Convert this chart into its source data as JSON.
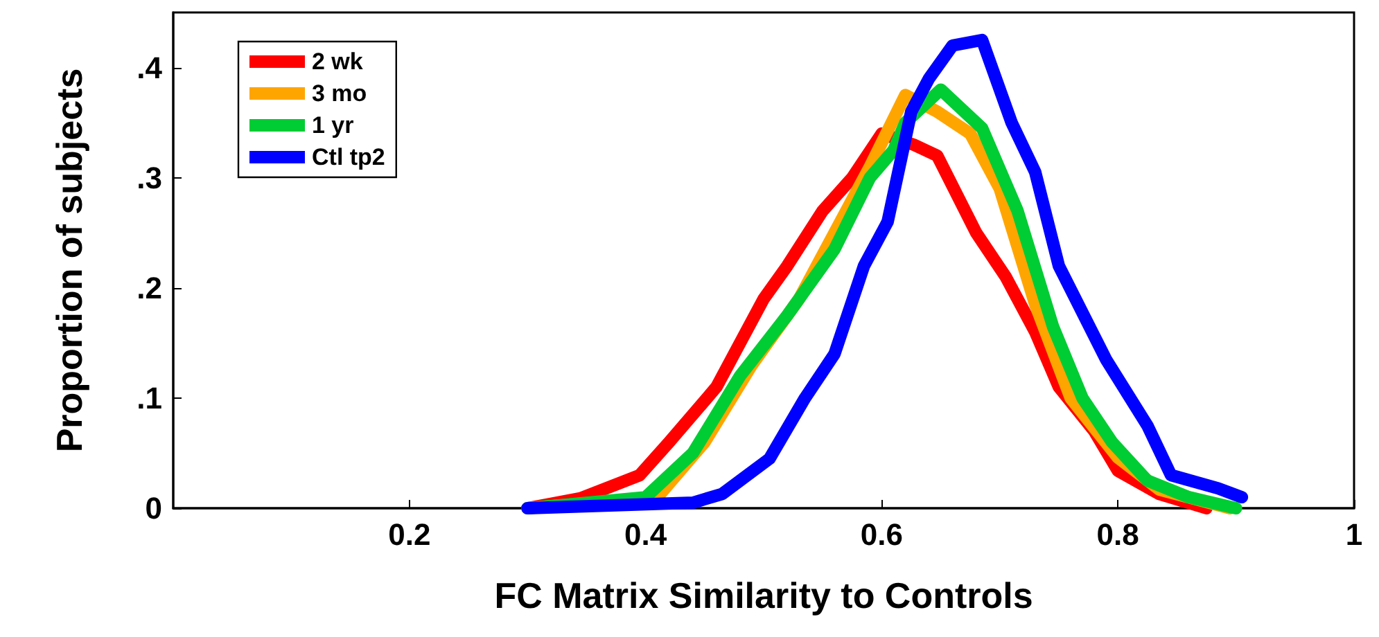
{
  "chart_data": {
    "type": "line",
    "xlabel": "FC Matrix Similarity to Controls",
    "ylabel": "Proportion of subjects",
    "xlim": [
      0,
      1
    ],
    "xticks": [
      0.2,
      0.4,
      0.6,
      0.8,
      1
    ],
    "ylim": [
      0,
      0.45
    ],
    "yticks": [
      0,
      {
        "value": 0.1,
        "label": ".1"
      },
      {
        "value": 0.2,
        "label": ".2"
      },
      {
        "value": 0.3,
        "label": ".3"
      },
      {
        "value": 0.4,
        "label": ".4"
      }
    ],
    "grid": false,
    "legend": "top left",
    "marker": "none",
    "line_style": "solid",
    "series": [
      {
        "name": "2 wk",
        "color": "#ff0000",
        "x": [
          0.3,
          0.345,
          0.395,
          0.42,
          0.46,
          0.5,
          0.52,
          0.55,
          0.575,
          0.6,
          0.627,
          0.647,
          0.68,
          0.705,
          0.73,
          0.75,
          0.78,
          0.8,
          0.835,
          0.875
        ],
        "values": [
          0,
          0.009,
          0.03,
          0.06,
          0.11,
          0.19,
          0.22,
          0.27,
          0.3,
          0.34,
          0.33,
          0.32,
          0.25,
          0.21,
          0.16,
          0.11,
          0.07,
          0.034,
          0.013,
          0
        ]
      },
      {
        "name": "3 mo",
        "color": "#ffa500",
        "x": [
          0.3,
          0.41,
          0.45,
          0.49,
          0.53,
          0.56,
          0.59,
          0.62,
          0.647,
          0.675,
          0.7,
          0.73,
          0.76,
          0.8,
          0.835,
          0.895
        ],
        "values": [
          0,
          0.01,
          0.06,
          0.13,
          0.19,
          0.25,
          0.31,
          0.375,
          0.36,
          0.34,
          0.29,
          0.185,
          0.1,
          0.046,
          0.017,
          0
        ]
      },
      {
        "name": "1 yr",
        "color": "#00cc33",
        "x": [
          0.3,
          0.4,
          0.44,
          0.48,
          0.52,
          0.56,
          0.59,
          0.61,
          0.62,
          0.65,
          0.685,
          0.715,
          0.745,
          0.77,
          0.795,
          0.825,
          0.86,
          0.9
        ],
        "values": [
          0,
          0.01,
          0.05,
          0.12,
          0.175,
          0.235,
          0.3,
          0.325,
          0.35,
          0.38,
          0.345,
          0.27,
          0.165,
          0.1,
          0.06,
          0.025,
          0.01,
          0
        ]
      },
      {
        "name": "Ctl tp2",
        "color": "#0000ff",
        "x": [
          0.3,
          0.44,
          0.465,
          0.505,
          0.535,
          0.56,
          0.585,
          0.605,
          0.625,
          0.64,
          0.66,
          0.685,
          0.71,
          0.73,
          0.75,
          0.79,
          0.825,
          0.845,
          0.885,
          0.905
        ],
        "values": [
          0,
          0.005,
          0.013,
          0.045,
          0.1,
          0.14,
          0.22,
          0.26,
          0.36,
          0.39,
          0.42,
          0.425,
          0.35,
          0.305,
          0.22,
          0.135,
          0.075,
          0.03,
          0.018,
          0.01
        ]
      }
    ]
  }
}
